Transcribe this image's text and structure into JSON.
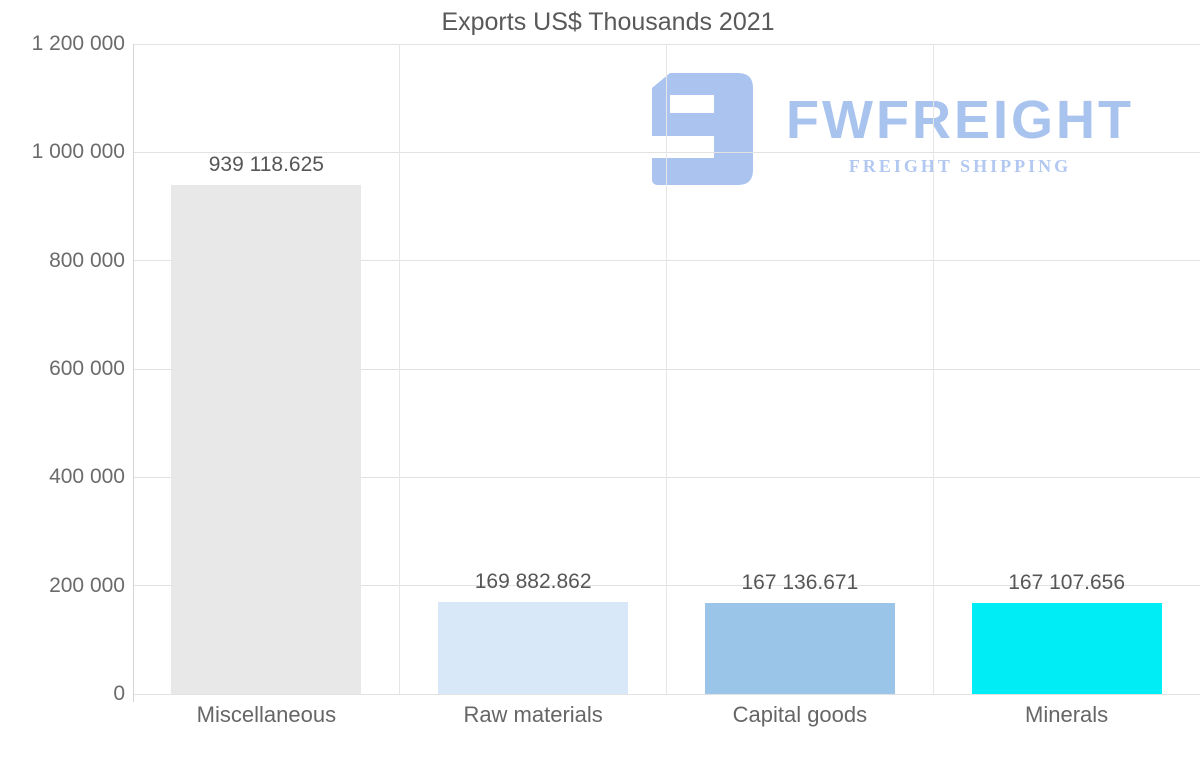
{
  "chart_data": {
    "type": "bar",
    "title": "Exports US$ Thousands 2021",
    "categories": [
      "Miscellaneous",
      "Raw materials",
      "Capital goods",
      "Minerals"
    ],
    "values": [
      939118.625,
      169882.862,
      167136.671,
      167107.656
    ],
    "value_labels": [
      "939 118.625",
      "169 882.862",
      "167 136.671",
      "167 107.656"
    ],
    "bar_colors": [
      "#e8e8e8",
      "#d8e8f8",
      "#9ac4e8",
      "#00edf5"
    ],
    "xlabel": "",
    "ylabel": "",
    "ylim": [
      0,
      1200000
    ],
    "ytick_step": 200000,
    "ytick_labels": [
      "0",
      "200 000",
      "400 000",
      "600 000",
      "800 000",
      "1 000 000",
      "1 200 000"
    ],
    "grid": true,
    "legend": "none"
  },
  "watermark": {
    "name": "FWFREIGHT",
    "tagline": "FREIGHT SHIPPING",
    "icon": "fwfreight-logo-mark",
    "color": "#a9c3ef"
  }
}
